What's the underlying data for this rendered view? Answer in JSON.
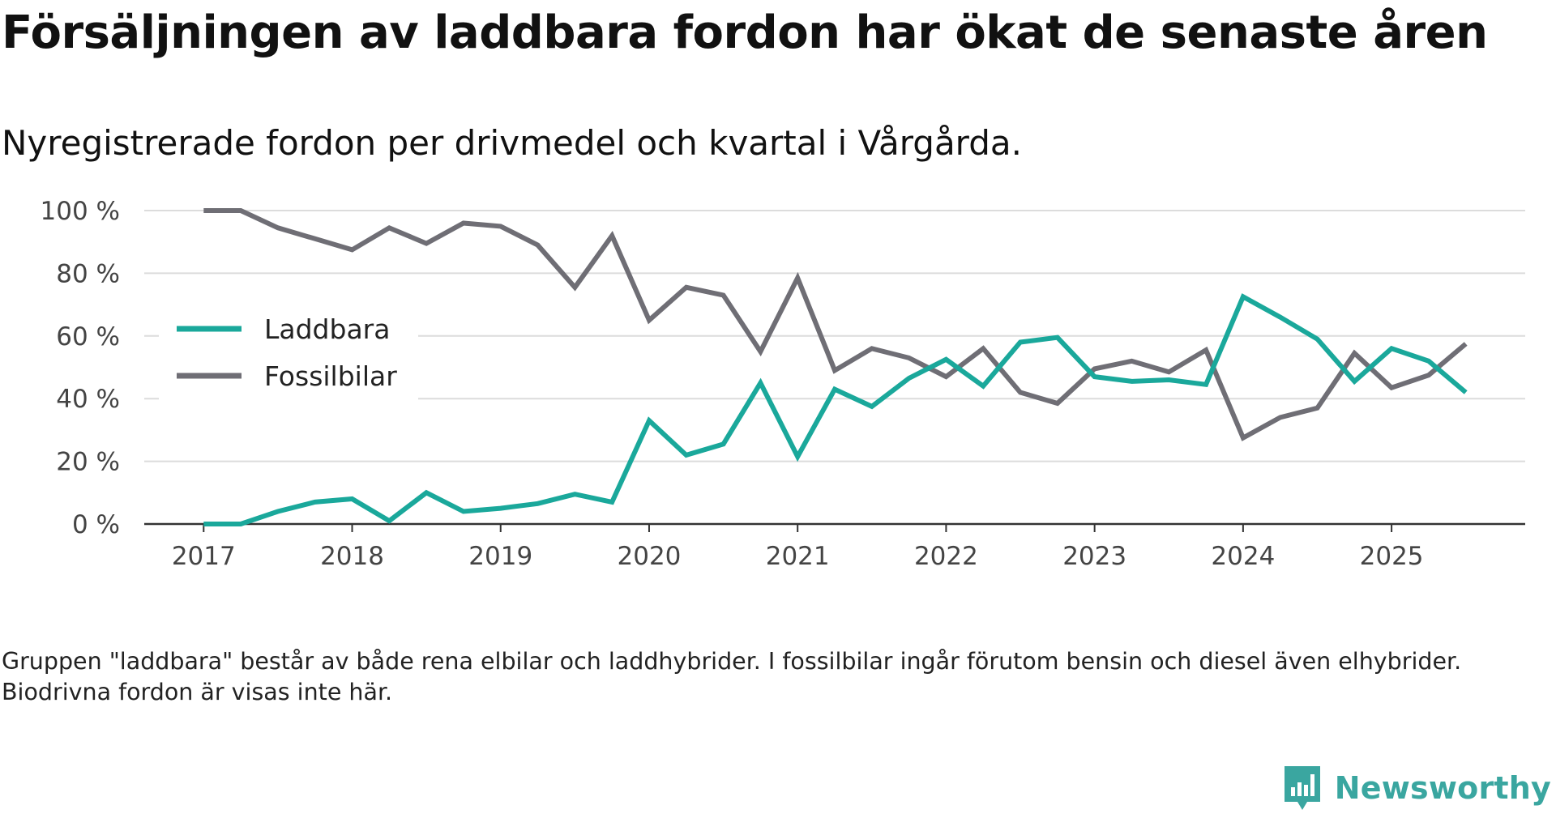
{
  "title": "Försäljningen av laddbara fordon har ökat de senaste åren",
  "subtitle": "Nyregistrerade fordon per drivmedel och kvartal i Vårgårda.",
  "note": "Gruppen \"laddbara\" består av både rena elbilar och laddhybrider. I fossilbilar ingår förutom bensin och diesel även elhybrider. Biodrivna fordon är visas inte här.",
  "brand": {
    "name": "Newsworthy",
    "icon": "newsworthy-logo-icon"
  },
  "colors": {
    "laddbara": "#1aa89b",
    "fossil": "#6f6e75",
    "grid": "#dcdcdc",
    "axis": "#333333",
    "tick": "#444444"
  },
  "chart_data": {
    "type": "line",
    "title": "Nyregistrerade fordon per drivmedel och kvartal i Vårgårda.",
    "xlabel": "",
    "ylabel": "",
    "x": [
      2017.0,
      2017.25,
      2017.5,
      2017.75,
      2018.0,
      2018.25,
      2018.5,
      2018.75,
      2019.0,
      2019.25,
      2019.5,
      2019.75,
      2020.0,
      2020.25,
      2020.5,
      2020.75,
      2021.0,
      2021.25,
      2021.5,
      2021.75,
      2022.0,
      2022.25,
      2022.5,
      2022.75,
      2023.0,
      2023.25,
      2023.5,
      2023.75,
      2024.0,
      2024.25,
      2024.5,
      2024.75,
      2025.0,
      2025.25,
      2025.5
    ],
    "xlim": [
      2016.6,
      2025.9
    ],
    "ylim": [
      0,
      100
    ],
    "x_ticks": [
      2017,
      2018,
      2019,
      2020,
      2021,
      2022,
      2023,
      2024,
      2025
    ],
    "x_tick_labels": [
      "2017",
      "2018",
      "2019",
      "2020",
      "2021",
      "2022",
      "2023",
      "2024",
      "2025"
    ],
    "y_ticks": [
      0,
      20,
      40,
      60,
      80,
      100
    ],
    "y_tick_labels": [
      "0 %",
      "20 %",
      "40 %",
      "60 %",
      "80 %",
      "100 %"
    ],
    "grid": true,
    "legend_position": "left-middle",
    "series": [
      {
        "name": "Laddbara",
        "color": "#1aa89b",
        "values": [
          0,
          0,
          4,
          7,
          8,
          1,
          10,
          4,
          5,
          6.5,
          9.5,
          7,
          33,
          22,
          25.5,
          45,
          21.5,
          43,
          37.5,
          46.5,
          52.5,
          44,
          58,
          59.5,
          47,
          45.5,
          46,
          44.5,
          72.5,
          66,
          59,
          45.5,
          56,
          52,
          42
        ]
      },
      {
        "name": "Fossilbilar",
        "color": "#6f6e75",
        "values": [
          100,
          100,
          94.5,
          91,
          87.5,
          94.5,
          89.5,
          96,
          95,
          89,
          75.5,
          92,
          65,
          75.5,
          73,
          55,
          78.5,
          49,
          56,
          53,
          47,
          56,
          42,
          38.5,
          49.5,
          52,
          48.5,
          55.5,
          27.5,
          34,
          37,
          54.5,
          43.5,
          47.5,
          57.5
        ]
      }
    ]
  }
}
